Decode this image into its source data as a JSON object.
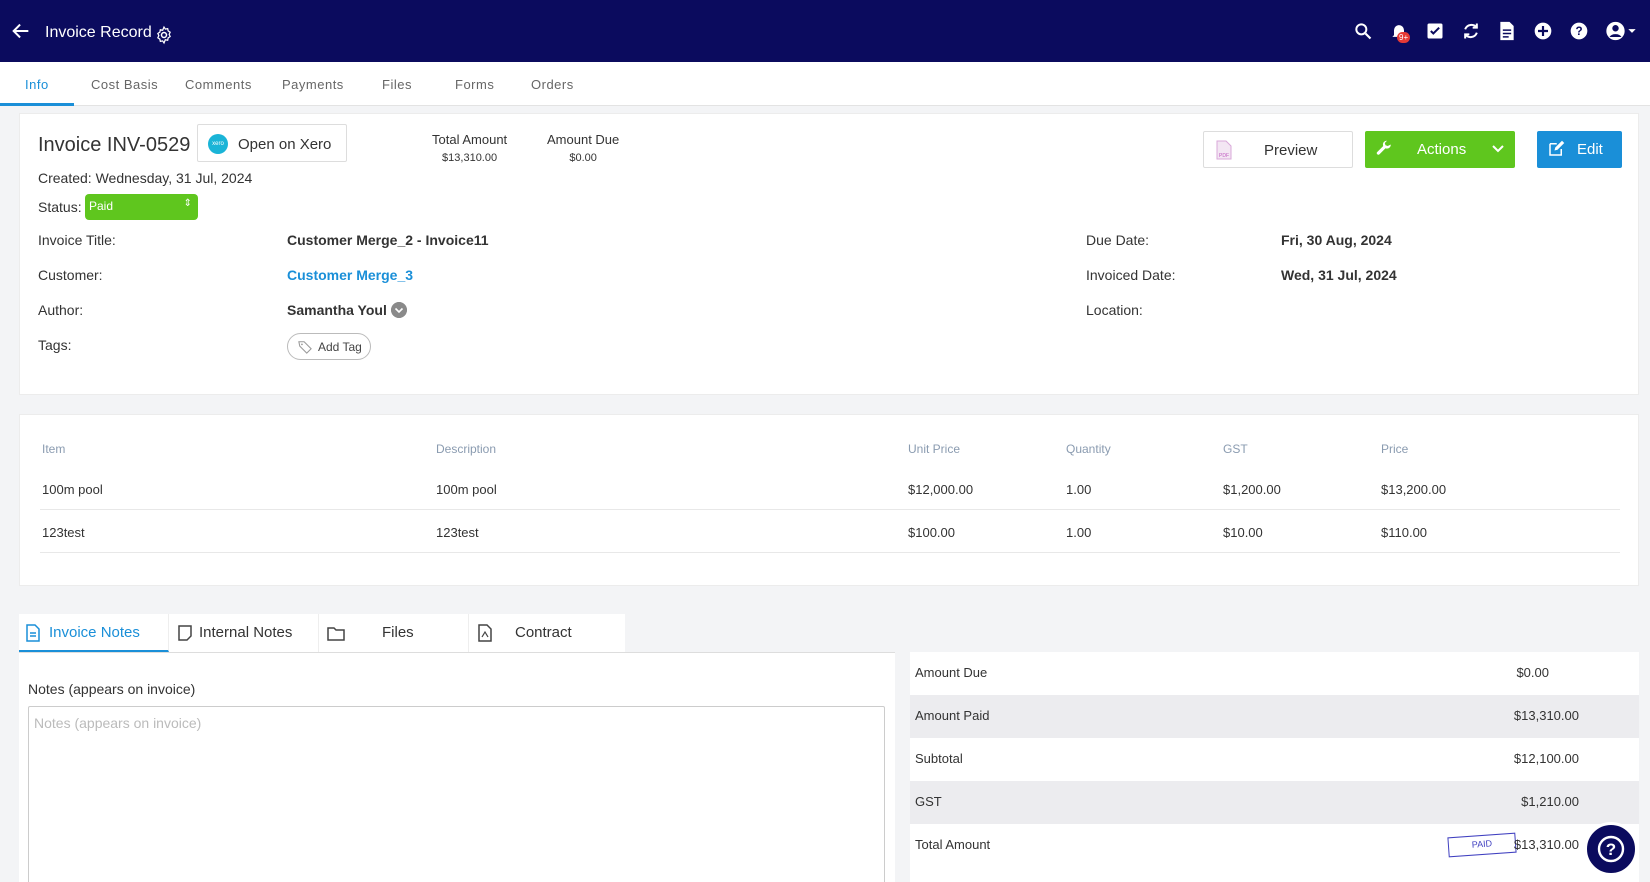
{
  "header": {
    "title": "Invoice Record",
    "notification_count": "9+"
  },
  "tabs": [
    "Info",
    "Cost Basis",
    "Comments",
    "Payments",
    "Files",
    "Forms",
    "Orders"
  ],
  "invoice": {
    "title": "Invoice INV-0529",
    "xero_button": "Open on Xero",
    "xero_logo_text": "xero",
    "total_amount_label": "Total Amount",
    "total_amount": "$13,310.00",
    "amount_due_label": "Amount Due",
    "amount_due": "$0.00",
    "created": "Created: Wednesday, 31 Jul, 2024",
    "status_label": "Status:",
    "status": "Paid",
    "preview_button": "Preview",
    "actions_button": "Actions",
    "edit_button": "Edit"
  },
  "fields": {
    "invoice_title_label": "Invoice Title:",
    "invoice_title": "Customer Merge_2 - Invoice11",
    "customer_label": "Customer:",
    "customer": "Customer Merge_3",
    "author_label": "Author:",
    "author": "Samantha Youl",
    "tags_label": "Tags:",
    "add_tag": "Add Tag",
    "due_date_label": "Due Date:",
    "due_date": "Fri, 30 Aug, 2024",
    "invoiced_date_label": "Invoiced Date:",
    "invoiced_date": "Wed, 31 Jul, 2024",
    "location_label": "Location:"
  },
  "items_table": {
    "columns": [
      "Item",
      "Description",
      "Unit Price",
      "Quantity",
      "GST",
      "Price"
    ],
    "rows": [
      [
        "100m pool",
        "100m pool",
        "$12,000.00",
        "1.00",
        "$1,200.00",
        "$13,200.00"
      ],
      [
        "123test",
        "123test",
        "$100.00",
        "1.00",
        "$10.00",
        "$110.00"
      ]
    ]
  },
  "notes_tabs": [
    "Invoice Notes",
    "Internal Notes",
    "Files",
    "Contract"
  ],
  "notes": {
    "label": "Notes (appears on invoice)",
    "placeholder": "Notes (appears on invoice)"
  },
  "summary": [
    {
      "label": "Amount Due",
      "value": "$0.00"
    },
    {
      "label": "Amount Paid",
      "value": "$13,310.00"
    },
    {
      "label": "Subtotal",
      "value": "$12,100.00"
    },
    {
      "label": "GST",
      "value": "$1,210.00"
    },
    {
      "label": "Total Amount",
      "value": "$13,310.00"
    }
  ],
  "paid_stamp": "PAID",
  "colors": {
    "header_bg": "#0b0b5e",
    "accent": "#1a8fd8",
    "success": "#5fc61e"
  }
}
